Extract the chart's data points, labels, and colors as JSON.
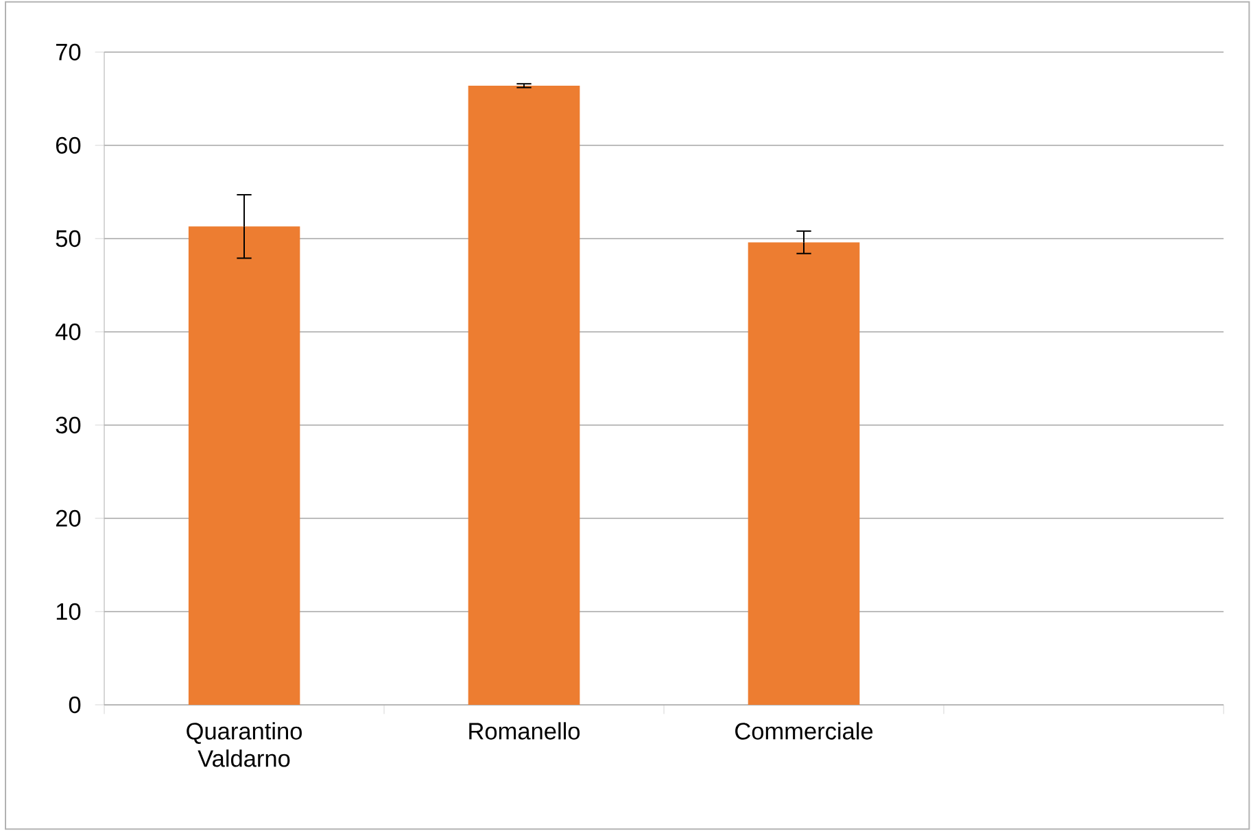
{
  "chart_data": {
    "type": "bar",
    "categories": [
      "Quarantino Valdarno",
      "Romanello",
      "Commerciale",
      null
    ],
    "values": [
      51.3,
      66.4,
      49.6,
      null
    ],
    "errors": [
      3.4,
      0.2,
      1.2,
      null
    ],
    "color": "#ed7d31",
    "ylim": [
      0,
      70
    ],
    "yticks": [
      0,
      10,
      20,
      30,
      40,
      50,
      60,
      70
    ],
    "grid": "y"
  }
}
